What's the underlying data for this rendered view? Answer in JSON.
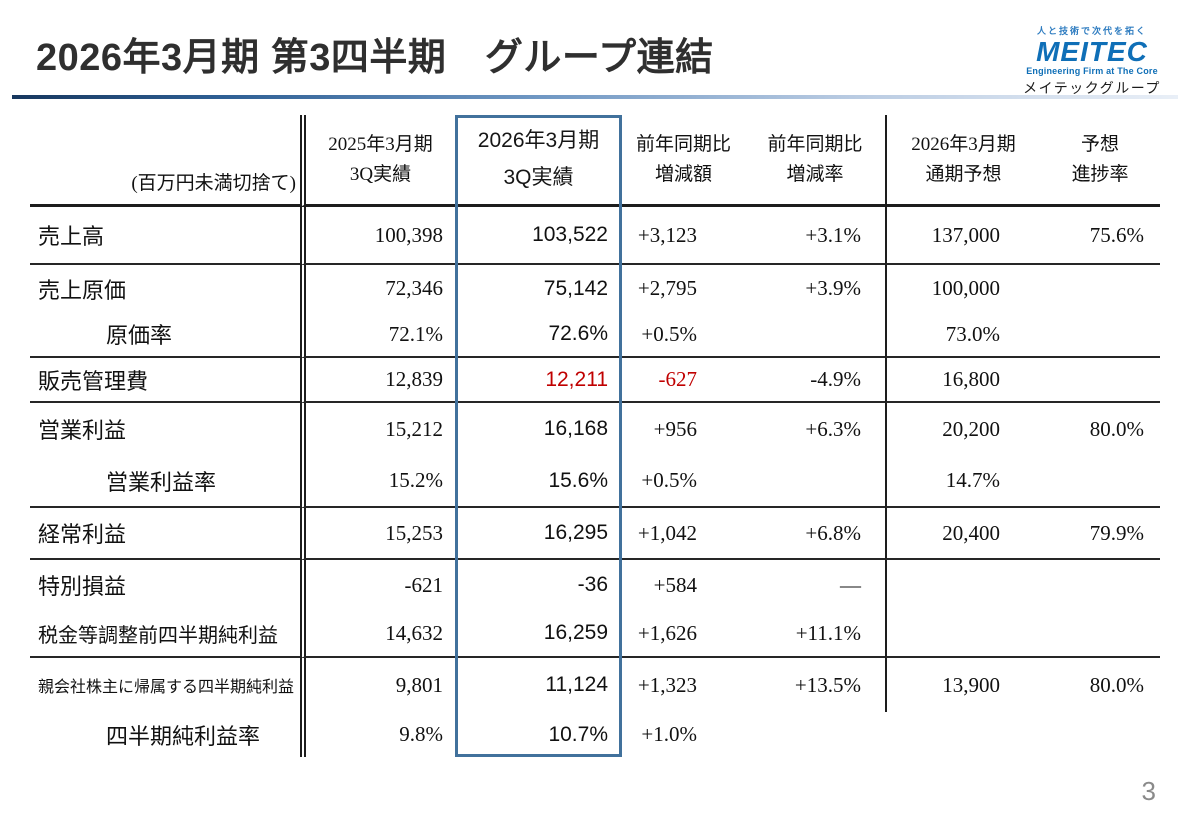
{
  "page": {
    "title": "2026年3月期 第3四半期　グループ連結",
    "page_number": "3"
  },
  "logo": {
    "tagline": "人と技術で次代を拓く",
    "brand": "MEITEC",
    "subtitle": "Engineering Firm at The Core",
    "group_name": "メイテックグループ",
    "brand_color": "#0f6fb7"
  },
  "table": {
    "unit_note": "(百万円未満切捨て)",
    "highlight_border_color": "#41719c",
    "negative_color": "#c00000",
    "headers": [
      {
        "line1": "2025年3月期",
        "line2": "3Q実績"
      },
      {
        "line1": "2026年3月期",
        "line2": "3Q実績"
      },
      {
        "line1": "前年同期比",
        "line2": "増減額"
      },
      {
        "line1": "前年同期比",
        "line2": "増減率"
      },
      {
        "line1": "2026年3月期",
        "line2": "通期予想"
      },
      {
        "line1": "予想",
        "line2": "進捗率"
      }
    ],
    "rows": [
      {
        "label": "売上高",
        "style": "main",
        "values": [
          "100,398",
          "103,522",
          "+3,123",
          "+3.1%",
          "137,000",
          "75.6%"
        ],
        "red": [],
        "sep": true
      },
      {
        "label": "売上原価",
        "style": "main",
        "values": [
          "72,346",
          "75,142",
          "+2,795",
          "+3.9%",
          "100,000",
          ""
        ],
        "red": [],
        "sep": false
      },
      {
        "label": "原価率",
        "style": "sub",
        "values": [
          "72.1%",
          "72.6%",
          "+0.5%",
          "",
          "73.0%",
          ""
        ],
        "red": [],
        "sep": true
      },
      {
        "label": "販売管理費",
        "style": "main",
        "values": [
          "12,839",
          "12,211",
          "-627",
          "-4.9%",
          "16,800",
          ""
        ],
        "red": [
          2,
          3
        ],
        "sep": true
      },
      {
        "label": "営業利益",
        "style": "main",
        "values": [
          "15,212",
          "16,168",
          "+956",
          "+6.3%",
          "20,200",
          "80.0%"
        ],
        "red": [],
        "sep": false
      },
      {
        "label": "営業利益率",
        "style": "sub",
        "values": [
          "15.2%",
          "15.6%",
          "+0.5%",
          "",
          "14.7%",
          ""
        ],
        "red": [],
        "sep": true
      },
      {
        "label": "経常利益",
        "style": "main",
        "values": [
          "15,253",
          "16,295",
          "+1,042",
          "+6.8%",
          "20,400",
          "79.9%"
        ],
        "red": [],
        "sep": true
      },
      {
        "label": "特別損益",
        "style": "main",
        "values": [
          "-621",
          "-36",
          "+584",
          "—",
          "",
          ""
        ],
        "red": [],
        "sep": false
      },
      {
        "label": "税金等調整前四半期純利益",
        "style": "main-long",
        "values": [
          "14,632",
          "16,259",
          "+1,626",
          "+11.1%",
          "",
          ""
        ],
        "red": [],
        "sep": true
      },
      {
        "label": "親会社株主に帰属する四半期純利益",
        "style": "main-small",
        "values": [
          "9,801",
          "11,124",
          "+1,323",
          "+13.5%",
          "13,900",
          "80.0%"
        ],
        "red": [],
        "sep": false
      },
      {
        "label": "四半期純利益率",
        "style": "sub",
        "values": [
          "9.8%",
          "10.7%",
          "+1.0%",
          "",
          "",
          ""
        ],
        "red": [],
        "sep": false,
        "no_vline": true
      }
    ]
  }
}
